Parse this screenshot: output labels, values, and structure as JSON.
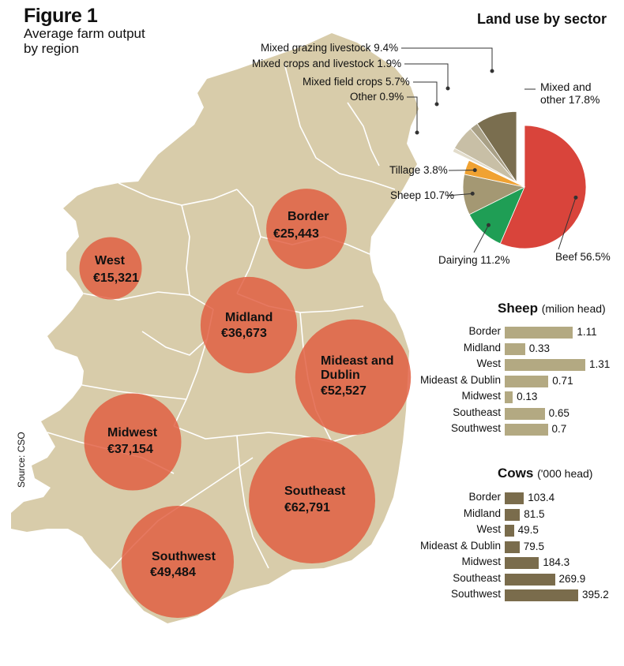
{
  "figure": {
    "title": "Figure 1",
    "subtitle": "Average farm output by region",
    "source": "Source: CSO"
  },
  "colors": {
    "land": "#d8ccaa",
    "border_lines": "#ffffff",
    "bubble": "#e05c3e",
    "sheep_bar": "#b3a982",
    "cow_bar": "#7a6c4c"
  },
  "chart_data": [
    {
      "type": "bubble",
      "title": "Average farm output by region",
      "regions": [
        {
          "name": "Border",
          "value": 25443,
          "label": "€25,443"
        },
        {
          "name": "West",
          "value": 15321,
          "label": "€15,321"
        },
        {
          "name": "Midland",
          "value": 36673,
          "label": "€36,673"
        },
        {
          "name": "Mideast and Dublin",
          "value": 52527,
          "label": "€52,527"
        },
        {
          "name": "Midwest",
          "value": 37154,
          "label": "€37,154"
        },
        {
          "name": "Southeast",
          "value": 62791,
          "label": "€62,791"
        },
        {
          "name": "Southwest",
          "value": 49484,
          "label": "€49,484"
        }
      ]
    },
    {
      "type": "pie",
      "title": "Land use by sector",
      "slices": [
        {
          "label": "Beef",
          "value": 56.5,
          "text": "Beef 56.5%",
          "color": "#d9443b"
        },
        {
          "label": "Dairying",
          "value": 11.2,
          "text": "Dairying 11.2%",
          "color": "#1f9e55"
        },
        {
          "label": "Sheep",
          "value": 10.7,
          "text": "Sheep 10.7%",
          "color": "#a49873"
        },
        {
          "label": "Tillage",
          "value": 3.8,
          "text": "Tillage 3.8%",
          "color": "#f0a232"
        },
        {
          "label": "Other",
          "value": 0.9,
          "text": "Other 0.9%",
          "color": "#e2dccb"
        },
        {
          "label": "Mixed field crops",
          "value": 5.7,
          "text": "Mixed field crops 5.7%",
          "color": "#c8bfa6"
        },
        {
          "label": "Mixed crops and livestock",
          "value": 1.9,
          "text": "Mixed crops and livestock 1.9%",
          "color": "#a9a086"
        },
        {
          "label": "Mixed grazing livestock",
          "value": 9.4,
          "text": "Mixed grazing livestock 9.4%",
          "color": "#7a6e4f"
        }
      ],
      "group_label": [
        "Mixed and",
        "other 17.8%"
      ]
    },
    {
      "type": "bar",
      "title": "Sheep",
      "unit": "(milion head)",
      "categories": [
        "Border",
        "Midland",
        "West",
        "Mideast & Dublin",
        "Midwest",
        "Southeast",
        "Southwest"
      ],
      "values": [
        1.11,
        0.33,
        1.31,
        0.71,
        0.13,
        0.65,
        0.7
      ],
      "value_labels": [
        "1.11",
        "0.33",
        "1.31",
        "0.71",
        "0.13",
        "0.65",
        "0.7"
      ]
    },
    {
      "type": "bar",
      "title": "Cows",
      "unit": "('000 head)",
      "categories": [
        "Border",
        "Midland",
        "West",
        "Mideast & Dublin",
        "Midwest",
        "Southeast",
        "Southwest"
      ],
      "values": [
        103.4,
        81.5,
        49.5,
        79.5,
        184.3,
        269.9,
        395.2
      ],
      "value_labels": [
        "103.4",
        "81.5",
        "49.5",
        "79.5",
        "184.3",
        "269.9",
        "395.2"
      ]
    }
  ]
}
